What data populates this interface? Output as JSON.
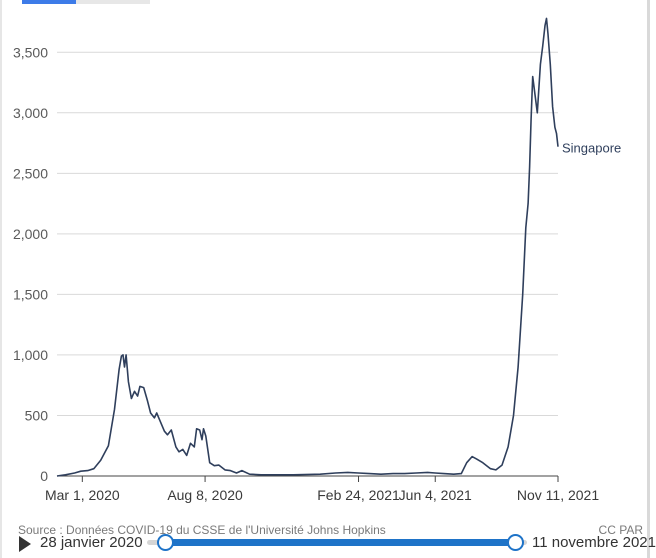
{
  "source_text": "Source : Données COVID-19 du CSSE de l'Université Johns Hopkins",
  "license_text": "CC PAR",
  "timeline": {
    "start_label": "28 janvier 2020",
    "end_label": "11 novembre 2021",
    "start_fraction": 0.0,
    "end_fraction": 1.0
  },
  "colors": {
    "line": "#2f3f5c",
    "grid": "#d9d9d9",
    "slider": "#1e73c8"
  },
  "chart_data": {
    "type": "line",
    "title": "",
    "xlabel": "",
    "ylabel": "",
    "xlim": [
      "2020-01-28",
      "2021-11-11"
    ],
    "ylim": [
      0,
      3750
    ],
    "yticks": [
      0,
      500,
      1000,
      1500,
      2000,
      2500,
      3000,
      3500
    ],
    "ytick_labels": [
      "0",
      "500",
      "1,000",
      "1,500",
      "2,000",
      "2,500",
      "3,000",
      "3,500"
    ],
    "xticks": [
      "2020-03-01",
      "2020-08-08",
      "2021-02-24",
      "2021-06-04",
      "2021-11-11"
    ],
    "xtick_labels": [
      "Mar 1, 2020",
      "Aug 8, 2020",
      "Feb 24, 2021",
      "Jun 4, 2021",
      "Nov 11, 2021"
    ],
    "grid": true,
    "series": [
      {
        "name": "Singapore",
        "points": [
          [
            "2020-01-28",
            0
          ],
          [
            "2020-02-08",
            10
          ],
          [
            "2020-02-20",
            25
          ],
          [
            "2020-02-28",
            40
          ],
          [
            "2020-03-08",
            45
          ],
          [
            "2020-03-16",
            60
          ],
          [
            "2020-03-25",
            130
          ],
          [
            "2020-04-04",
            250
          ],
          [
            "2020-04-12",
            550
          ],
          [
            "2020-04-18",
            880
          ],
          [
            "2020-04-21",
            990
          ],
          [
            "2020-04-23",
            1000
          ],
          [
            "2020-04-25",
            900
          ],
          [
            "2020-04-27",
            1000
          ],
          [
            "2020-04-30",
            780
          ],
          [
            "2020-05-04",
            640
          ],
          [
            "2020-05-08",
            700
          ],
          [
            "2020-05-12",
            660
          ],
          [
            "2020-05-15",
            740
          ],
          [
            "2020-05-20",
            730
          ],
          [
            "2020-05-25",
            620
          ],
          [
            "2020-05-29",
            520
          ],
          [
            "2020-06-03",
            480
          ],
          [
            "2020-06-06",
            520
          ],
          [
            "2020-06-10",
            460
          ],
          [
            "2020-06-16",
            370
          ],
          [
            "2020-06-20",
            340
          ],
          [
            "2020-06-25",
            380
          ],
          [
            "2020-07-01",
            240
          ],
          [
            "2020-07-05",
            200
          ],
          [
            "2020-07-10",
            220
          ],
          [
            "2020-07-15",
            170
          ],
          [
            "2020-07-20",
            270
          ],
          [
            "2020-07-25",
            240
          ],
          [
            "2020-07-28",
            390
          ],
          [
            "2020-08-01",
            380
          ],
          [
            "2020-08-04",
            300
          ],
          [
            "2020-08-06",
            390
          ],
          [
            "2020-08-09",
            330
          ],
          [
            "2020-08-14",
            110
          ],
          [
            "2020-08-20",
            85
          ],
          [
            "2020-08-26",
            90
          ],
          [
            "2020-09-03",
            50
          ],
          [
            "2020-09-10",
            45
          ],
          [
            "2020-09-18",
            25
          ],
          [
            "2020-09-25",
            45
          ],
          [
            "2020-10-05",
            15
          ],
          [
            "2020-10-20",
            10
          ],
          [
            "2020-11-05",
            10
          ],
          [
            "2020-12-01",
            10
          ],
          [
            "2021-01-05",
            15
          ],
          [
            "2021-01-25",
            25
          ],
          [
            "2021-02-10",
            30
          ],
          [
            "2021-02-24",
            25
          ],
          [
            "2021-03-10",
            20
          ],
          [
            "2021-03-25",
            15
          ],
          [
            "2021-04-10",
            20
          ],
          [
            "2021-04-25",
            20
          ],
          [
            "2021-05-10",
            25
          ],
          [
            "2021-05-25",
            30
          ],
          [
            "2021-06-04",
            25
          ],
          [
            "2021-06-15",
            20
          ],
          [
            "2021-06-28",
            15
          ],
          [
            "2021-07-08",
            20
          ],
          [
            "2021-07-15",
            110
          ],
          [
            "2021-07-22",
            160
          ],
          [
            "2021-07-28",
            140
          ],
          [
            "2021-08-05",
            110
          ],
          [
            "2021-08-15",
            60
          ],
          [
            "2021-08-22",
            50
          ],
          [
            "2021-08-30",
            90
          ],
          [
            "2021-09-07",
            240
          ],
          [
            "2021-09-14",
            500
          ],
          [
            "2021-09-20",
            900
          ],
          [
            "2021-09-26",
            1500
          ],
          [
            "2021-09-30",
            2050
          ],
          [
            "2021-10-03",
            2250
          ],
          [
            "2021-10-05",
            2550
          ],
          [
            "2021-10-07",
            2950
          ],
          [
            "2021-10-09",
            3300
          ],
          [
            "2021-10-12",
            3150
          ],
          [
            "2021-10-15",
            3000
          ],
          [
            "2021-10-19",
            3400
          ],
          [
            "2021-10-22",
            3550
          ],
          [
            "2021-10-25",
            3720
          ],
          [
            "2021-10-27",
            3780
          ],
          [
            "2021-10-29",
            3650
          ],
          [
            "2021-11-01",
            3400
          ],
          [
            "2021-11-04",
            3050
          ],
          [
            "2021-11-07",
            2880
          ],
          [
            "2021-11-09",
            2830
          ],
          [
            "2021-11-11",
            2720
          ]
        ]
      }
    ]
  }
}
